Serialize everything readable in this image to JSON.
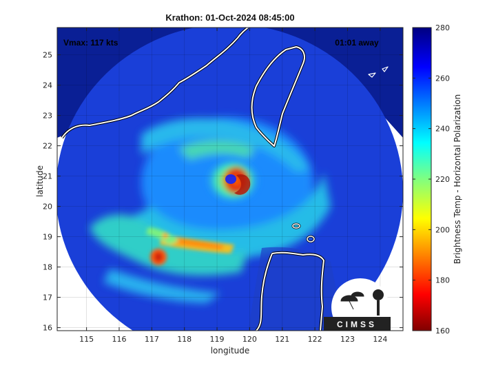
{
  "title": "Krathon: 01-Oct-2024 08:45:00",
  "annotations": {
    "vmax": "Vmax: 117 kts",
    "time_away": "01:01 away"
  },
  "axes": {
    "xlabel": "longitude",
    "ylabel": "latitude",
    "xlim": [
      114.1,
      124.7
    ],
    "ylim": [
      15.9,
      25.9
    ],
    "xticks": [
      115,
      116,
      117,
      118,
      119,
      120,
      121,
      122,
      123,
      124
    ],
    "yticks": [
      16,
      17,
      18,
      19,
      20,
      21,
      22,
      23,
      24,
      25
    ],
    "grid": true
  },
  "colorbar": {
    "label": "Brightness Temp - Horizontal Polarization",
    "range": [
      160,
      280
    ],
    "ticks": [
      160,
      180,
      200,
      220,
      240,
      260,
      280
    ],
    "colormap": "jet"
  },
  "logo": {
    "text": "CIMSS"
  },
  "colors": {
    "coastline": "#ffffff",
    "background_swath": "#0a2fb0",
    "eye": "#2a2ae0",
    "eyewall": "#e03a12"
  },
  "storm": {
    "center_lon": 119.5,
    "center_lat": 20.9
  }
}
